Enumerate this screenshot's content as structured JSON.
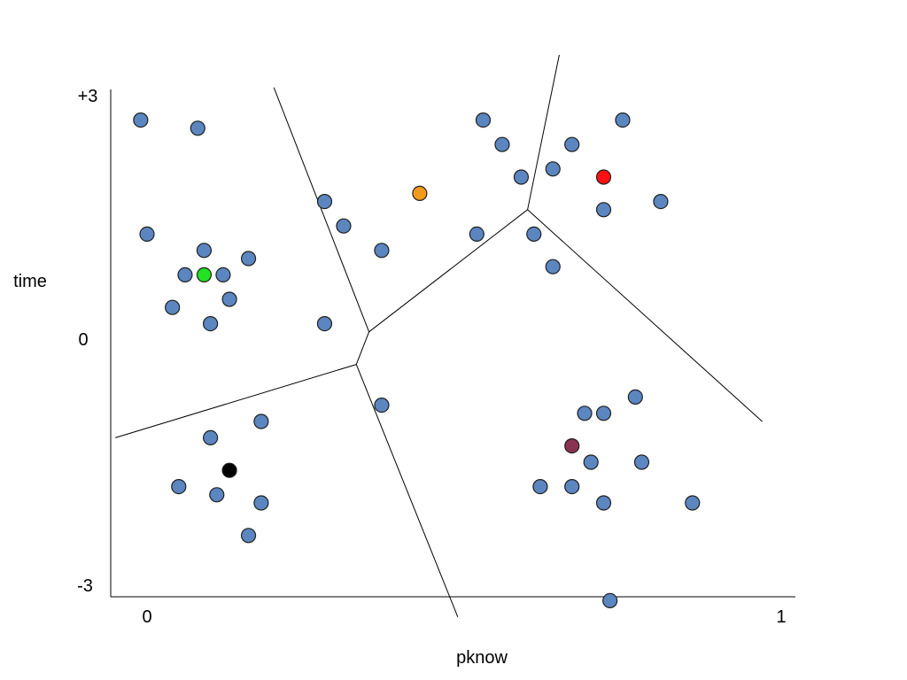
{
  "chart_data": {
    "type": "scatter",
    "xlabel": "pknow",
    "ylabel": "time",
    "xlim": [
      0,
      1
    ],
    "ylim": [
      -3,
      3
    ],
    "x_ticks": [
      {
        "value": 0,
        "label": "0"
      },
      {
        "value": 1,
        "label": "1"
      }
    ],
    "y_ticks": [
      {
        "value": 3,
        "label": "+3"
      },
      {
        "value": 0,
        "label": "0"
      },
      {
        "value": -3,
        "label": "-3"
      }
    ],
    "grid": false,
    "legend": "none",
    "colors": {
      "data_point": "#5b86c0",
      "centroid_green": "#22e022",
      "centroid_orange": "#f29a1d",
      "centroid_red": "#ff1111",
      "centroid_black": "#000000",
      "centroid_maroon": "#8b3152"
    },
    "points": [
      {
        "x": -0.01,
        "y": 2.7
      },
      {
        "x": 0.08,
        "y": 2.6
      },
      {
        "x": 0.0,
        "y": 1.3
      },
      {
        "x": 0.09,
        "y": 1.1
      },
      {
        "x": 0.06,
        "y": 0.8
      },
      {
        "x": 0.04,
        "y": 0.4
      },
      {
        "x": 0.12,
        "y": 0.8
      },
      {
        "x": 0.16,
        "y": 1.0
      },
      {
        "x": 0.13,
        "y": 0.5
      },
      {
        "x": 0.1,
        "y": 0.2
      },
      {
        "x": 0.28,
        "y": 1.7
      },
      {
        "x": 0.31,
        "y": 1.4
      },
      {
        "x": 0.37,
        "y": 1.1
      },
      {
        "x": 0.28,
        "y": 0.2
      },
      {
        "x": 0.52,
        "y": 1.3
      },
      {
        "x": 0.53,
        "y": 2.7
      },
      {
        "x": 0.56,
        "y": 2.4
      },
      {
        "x": 0.59,
        "y": 2.0
      },
      {
        "x": 0.61,
        "y": 1.3
      },
      {
        "x": 0.64,
        "y": 2.1
      },
      {
        "x": 0.67,
        "y": 2.4
      },
      {
        "x": 0.72,
        "y": 1.6
      },
      {
        "x": 0.75,
        "y": 2.7
      },
      {
        "x": 0.81,
        "y": 1.7
      },
      {
        "x": 0.64,
        "y": 0.9
      },
      {
        "x": 0.37,
        "y": -0.8
      },
      {
        "x": 0.18,
        "y": -1.0
      },
      {
        "x": 0.1,
        "y": -1.2
      },
      {
        "x": 0.05,
        "y": -1.8
      },
      {
        "x": 0.11,
        "y": -1.9
      },
      {
        "x": 0.18,
        "y": -2.0
      },
      {
        "x": 0.16,
        "y": -2.4
      },
      {
        "x": 0.62,
        "y": -1.8
      },
      {
        "x": 0.67,
        "y": -1.8
      },
      {
        "x": 0.69,
        "y": -0.9
      },
      {
        "x": 0.72,
        "y": -0.9
      },
      {
        "x": 0.77,
        "y": -0.7
      },
      {
        "x": 0.7,
        "y": -1.5
      },
      {
        "x": 0.78,
        "y": -1.5
      },
      {
        "x": 0.72,
        "y": -2.0
      },
      {
        "x": 0.86,
        "y": -2.0
      },
      {
        "x": 0.73,
        "y": -3.2
      }
    ],
    "centroids": [
      {
        "x": 0.09,
        "y": 0.8,
        "color": "#22e022"
      },
      {
        "x": 0.43,
        "y": 1.8,
        "color": "#f29a1d"
      },
      {
        "x": 0.72,
        "y": 2.0,
        "color": "#ff1111"
      },
      {
        "x": 0.13,
        "y": -1.6,
        "color": "#000000"
      },
      {
        "x": 0.67,
        "y": -1.3,
        "color": "#8b3152"
      }
    ],
    "boundaries": [
      [
        {
          "x": 0.2,
          "y": 3.1
        },
        {
          "x": 0.35,
          "y": 0.1
        }
      ],
      [
        {
          "x": 0.35,
          "y": 0.1
        },
        {
          "x": 0.33,
          "y": -0.3
        }
      ],
      [
        {
          "x": 0.35,
          "y": 0.1
        },
        {
          "x": 0.6,
          "y": 1.6
        }
      ],
      [
        {
          "x": 0.6,
          "y": 1.6
        },
        {
          "x": 0.65,
          "y": 3.5
        }
      ],
      [
        {
          "x": 0.6,
          "y": 1.6
        },
        {
          "x": 0.97,
          "y": -1.0
        }
      ],
      [
        {
          "x": 0.33,
          "y": -0.3
        },
        {
          "x": -0.05,
          "y": -1.2
        }
      ],
      [
        {
          "x": 0.33,
          "y": -0.3
        },
        {
          "x": 0.49,
          "y": -3.4
        }
      ]
    ]
  }
}
